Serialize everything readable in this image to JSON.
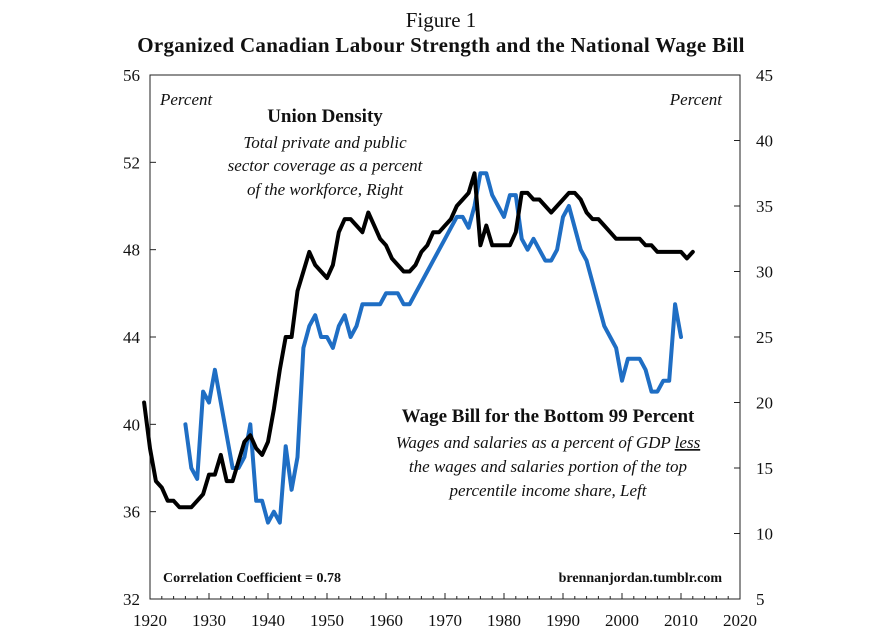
{
  "figure_label": "Figure 1",
  "chart_data": {
    "type": "line",
    "title": "Organized Canadian Labour Strength and the National Wage Bill",
    "left_axis": {
      "unit": "Percent",
      "ylim": [
        32,
        56
      ],
      "ticks": [
        "56",
        "52",
        "48",
        "44",
        "40",
        "36",
        "32"
      ]
    },
    "right_axis": {
      "unit": "Percent",
      "ylim": [
        5,
        45
      ],
      "ticks": [
        "45",
        "40",
        "35",
        "30",
        "25",
        "20",
        "15",
        "10",
        "5"
      ]
    },
    "x_axis": {
      "xlim": [
        1920,
        2020
      ],
      "ticks": [
        "1920",
        "1930",
        "1940",
        "1950",
        "1960",
        "1970",
        "1980",
        "1990",
        "2000",
        "2010",
        "2020"
      ]
    },
    "grid": false,
    "series": [
      {
        "name": "Union Density",
        "description_lines": [
          "Total private and public",
          "sector coverage  as a percent",
          "of the workforce, Right"
        ],
        "axis": "right",
        "color": "#000000",
        "points": [
          [
            1919,
            20.0
          ],
          [
            1920,
            16.5
          ],
          [
            1921,
            14.0
          ],
          [
            1922,
            13.5
          ],
          [
            1923,
            12.5
          ],
          [
            1924,
            12.5
          ],
          [
            1925,
            12.0
          ],
          [
            1926,
            12.0
          ],
          [
            1927,
            12.0
          ],
          [
            1928,
            12.5
          ],
          [
            1929,
            13.0
          ],
          [
            1930,
            14.5
          ],
          [
            1931,
            14.5
          ],
          [
            1932,
            16.0
          ],
          [
            1933,
            14.0
          ],
          [
            1934,
            14.0
          ],
          [
            1935,
            15.5
          ],
          [
            1936,
            17.0
          ],
          [
            1937,
            17.5
          ],
          [
            1938,
            16.5
          ],
          [
            1939,
            16.0
          ],
          [
            1940,
            17.0
          ],
          [
            1941,
            19.5
          ],
          [
            1942,
            22.5
          ],
          [
            1943,
            25.0
          ],
          [
            1944,
            25.0
          ],
          [
            1945,
            28.5
          ],
          [
            1946,
            30.0
          ],
          [
            1947,
            31.5
          ],
          [
            1948,
            30.5
          ],
          [
            1949,
            30.0
          ],
          [
            1950,
            29.5
          ],
          [
            1951,
            30.5
          ],
          [
            1952,
            33.0
          ],
          [
            1953,
            34.0
          ],
          [
            1954,
            34.0
          ],
          [
            1955,
            33.5
          ],
          [
            1956,
            33.0
          ],
          [
            1957,
            34.5
          ],
          [
            1958,
            33.5
          ],
          [
            1959,
            32.5
          ],
          [
            1960,
            32.0
          ],
          [
            1961,
            31.0
          ],
          [
            1962,
            30.5
          ],
          [
            1963,
            30.0
          ],
          [
            1964,
            30.0
          ],
          [
            1965,
            30.5
          ],
          [
            1966,
            31.5
          ],
          [
            1967,
            32.0
          ],
          [
            1968,
            33.0
          ],
          [
            1969,
            33.0
          ],
          [
            1970,
            33.5
          ],
          [
            1971,
            34.0
          ],
          [
            1972,
            35.0
          ],
          [
            1973,
            35.5
          ],
          [
            1974,
            36.0
          ],
          [
            1975,
            37.5
          ],
          [
            1976,
            32.0
          ],
          [
            1977,
            33.5
          ],
          [
            1978,
            32.0
          ],
          [
            1979,
            32.0
          ],
          [
            1980,
            32.0
          ],
          [
            1981,
            32.0
          ],
          [
            1982,
            33.0
          ],
          [
            1983,
            36.0
          ],
          [
            1984,
            36.0
          ],
          [
            1985,
            35.5
          ],
          [
            1986,
            35.5
          ],
          [
            1987,
            35.0
          ],
          [
            1988,
            34.5
          ],
          [
            1989,
            35.0
          ],
          [
            1990,
            35.5
          ],
          [
            1991,
            36.0
          ],
          [
            1992,
            36.0
          ],
          [
            1993,
            35.5
          ],
          [
            1994,
            34.5
          ],
          [
            1995,
            34.0
          ],
          [
            1996,
            34.0
          ],
          [
            1997,
            33.5
          ],
          [
            1998,
            33.0
          ],
          [
            1999,
            32.5
          ],
          [
            2000,
            32.5
          ],
          [
            2001,
            32.5
          ],
          [
            2002,
            32.5
          ],
          [
            2003,
            32.5
          ],
          [
            2004,
            32.0
          ],
          [
            2005,
            32.0
          ],
          [
            2006,
            31.5
          ],
          [
            2007,
            31.5
          ],
          [
            2008,
            31.5
          ],
          [
            2009,
            31.5
          ],
          [
            2010,
            31.5
          ],
          [
            2011,
            31.0
          ],
          [
            2012,
            31.5
          ]
        ]
      },
      {
        "name": "Wage Bill for the Bottom 99 Percent",
        "description_lines": [
          "Wages and salaries  as a percent of GDP less",
          "the wages and salaries portion of the top",
          "percentile income share,  Left"
        ],
        "axis": "left",
        "color": "#1f6ec4",
        "points": [
          [
            1926,
            40.0
          ],
          [
            1927,
            38.0
          ],
          [
            1928,
            37.5
          ],
          [
            1929,
            41.5
          ],
          [
            1930,
            41.0
          ],
          [
            1931,
            42.5
          ],
          [
            1932,
            41.0
          ],
          [
            1933,
            39.5
          ],
          [
            1934,
            38.0
          ],
          [
            1935,
            38.0
          ],
          [
            1936,
            38.5
          ],
          [
            1937,
            40.0
          ],
          [
            1938,
            36.5
          ],
          [
            1939,
            36.5
          ],
          [
            1940,
            35.5
          ],
          [
            1941,
            36.0
          ],
          [
            1942,
            35.5
          ],
          [
            1943,
            39.0
          ],
          [
            1944,
            37.0
          ],
          [
            1945,
            38.5
          ],
          [
            1946,
            43.5
          ],
          [
            1947,
            44.5
          ],
          [
            1948,
            45.0
          ],
          [
            1949,
            44.0
          ],
          [
            1950,
            44.0
          ],
          [
            1951,
            43.5
          ],
          [
            1952,
            44.5
          ],
          [
            1953,
            45.0
          ],
          [
            1954,
            44.0
          ],
          [
            1955,
            44.5
          ],
          [
            1956,
            45.5
          ],
          [
            1957,
            45.5
          ],
          [
            1958,
            45.5
          ],
          [
            1959,
            45.5
          ],
          [
            1960,
            46.0
          ],
          [
            1961,
            46.0
          ],
          [
            1962,
            46.0
          ],
          [
            1963,
            45.5
          ],
          [
            1964,
            45.5
          ],
          [
            1965,
            46.0
          ],
          [
            1966,
            46.5
          ],
          [
            1967,
            47.0
          ],
          [
            1968,
            47.5
          ],
          [
            1969,
            48.0
          ],
          [
            1970,
            48.5
          ],
          [
            1971,
            49.0
          ],
          [
            1972,
            49.5
          ],
          [
            1973,
            49.5
          ],
          [
            1974,
            49.0
          ],
          [
            1975,
            50.0
          ],
          [
            1976,
            51.5
          ],
          [
            1977,
            51.5
          ],
          [
            1978,
            50.5
          ],
          [
            1979,
            50.0
          ],
          [
            1980,
            49.5
          ],
          [
            1981,
            50.5
          ],
          [
            1982,
            50.5
          ],
          [
            1983,
            48.5
          ],
          [
            1984,
            48.0
          ],
          [
            1985,
            48.5
          ],
          [
            1986,
            48.0
          ],
          [
            1987,
            47.5
          ],
          [
            1988,
            47.5
          ],
          [
            1989,
            48.0
          ],
          [
            1990,
            49.5
          ],
          [
            1991,
            50.0
          ],
          [
            1992,
            49.0
          ],
          [
            1993,
            48.0
          ],
          [
            1994,
            47.5
          ],
          [
            1995,
            46.5
          ],
          [
            1996,
            45.5
          ],
          [
            1997,
            44.5
          ],
          [
            1998,
            44.0
          ],
          [
            1999,
            43.5
          ],
          [
            2000,
            42.0
          ],
          [
            2001,
            43.0
          ],
          [
            2002,
            43.0
          ],
          [
            2003,
            43.0
          ],
          [
            2004,
            42.5
          ],
          [
            2005,
            41.5
          ],
          [
            2006,
            41.5
          ],
          [
            2007,
            42.0
          ],
          [
            2008,
            42.0
          ],
          [
            2009,
            45.5
          ],
          [
            2010,
            44.0
          ]
        ]
      }
    ],
    "annotations": {
      "correlation": "Correlation Coefficient  = 0.78",
      "source": "brennanjordan.tumblr.com"
    }
  }
}
